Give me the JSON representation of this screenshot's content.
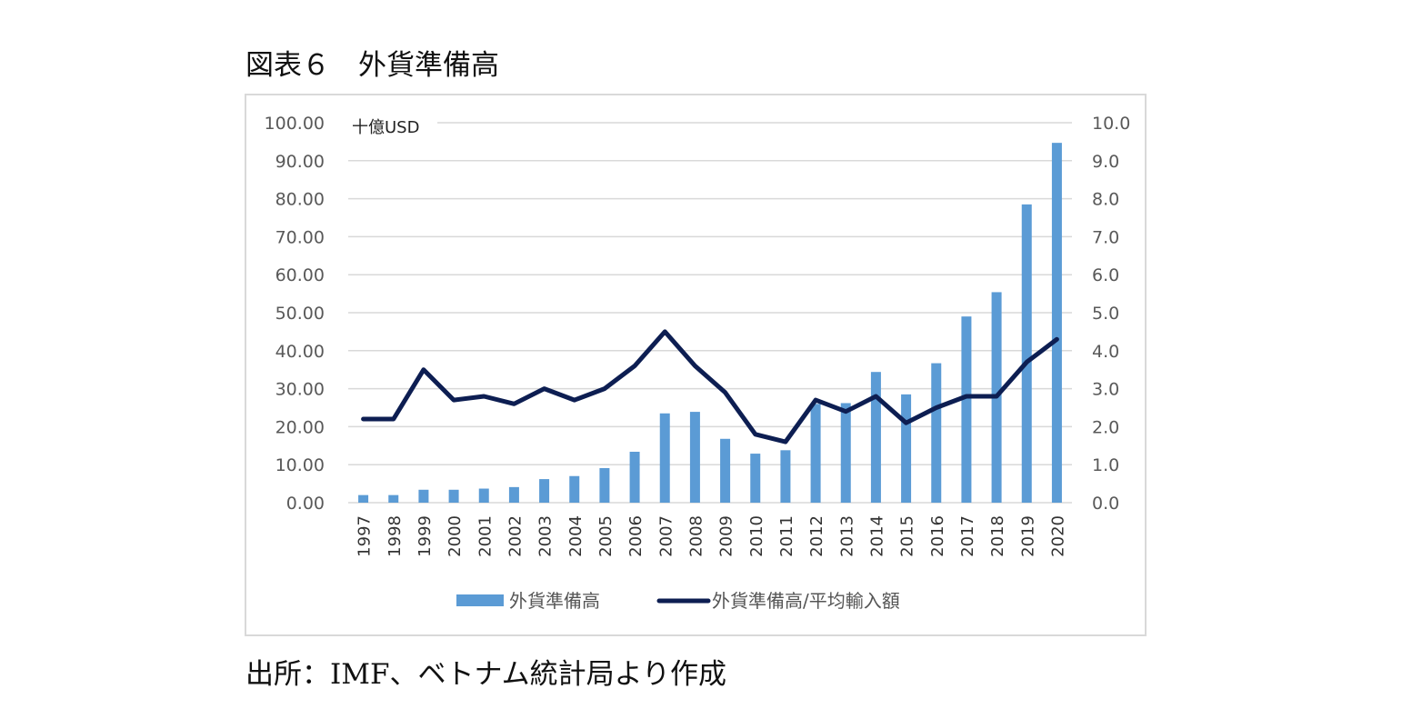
{
  "figure_title": "図表６　外貨準備高",
  "source_note": "出所：IMF、ベトナム統計局より作成",
  "colors": {
    "bar": "#5b9bd5",
    "line": "#0d1e52",
    "grid": "#d9d9d9",
    "axis_text": "#595959"
  },
  "chart_data": {
    "type": "bar",
    "unit_label": "十億USD",
    "categories": [
      "1997",
      "1998",
      "1999",
      "2000",
      "2001",
      "2002",
      "2003",
      "2004",
      "2005",
      "2006",
      "2007",
      "2008",
      "2009",
      "2010",
      "2011",
      "2012",
      "2013",
      "2014",
      "2015",
      "2016",
      "2017",
      "2018",
      "2019",
      "2020"
    ],
    "series": [
      {
        "name": "外貨準備高",
        "type": "bar",
        "axis": "left",
        "values": [
          2.0,
          2.0,
          3.4,
          3.4,
          3.7,
          4.1,
          6.2,
          7.0,
          9.1,
          13.4,
          23.5,
          23.9,
          16.8,
          12.9,
          13.8,
          26.0,
          26.2,
          34.4,
          28.5,
          36.7,
          49.0,
          55.4,
          78.5,
          94.7
        ]
      },
      {
        "name": "外貨準備高/平均輸入額",
        "type": "line",
        "axis": "right",
        "values": [
          2.2,
          2.2,
          3.5,
          2.7,
          2.8,
          2.6,
          3.0,
          2.7,
          3.0,
          3.6,
          4.5,
          3.6,
          2.9,
          1.8,
          1.6,
          2.7,
          2.4,
          2.8,
          2.1,
          2.5,
          2.8,
          2.8,
          3.7,
          4.3
        ]
      }
    ],
    "y_left": {
      "range": [
        0,
        100
      ],
      "ticks": [
        "0.00",
        "10.00",
        "20.00",
        "30.00",
        "40.00",
        "50.00",
        "60.00",
        "70.00",
        "80.00",
        "90.00",
        "100.00"
      ]
    },
    "y_right": {
      "range": [
        0,
        10
      ],
      "ticks": [
        "0.0",
        "1.0",
        "2.0",
        "3.0",
        "4.0",
        "5.0",
        "6.0",
        "7.0",
        "8.0",
        "9.0",
        "10.0"
      ]
    },
    "grid": true,
    "legend_position": "bottom"
  }
}
